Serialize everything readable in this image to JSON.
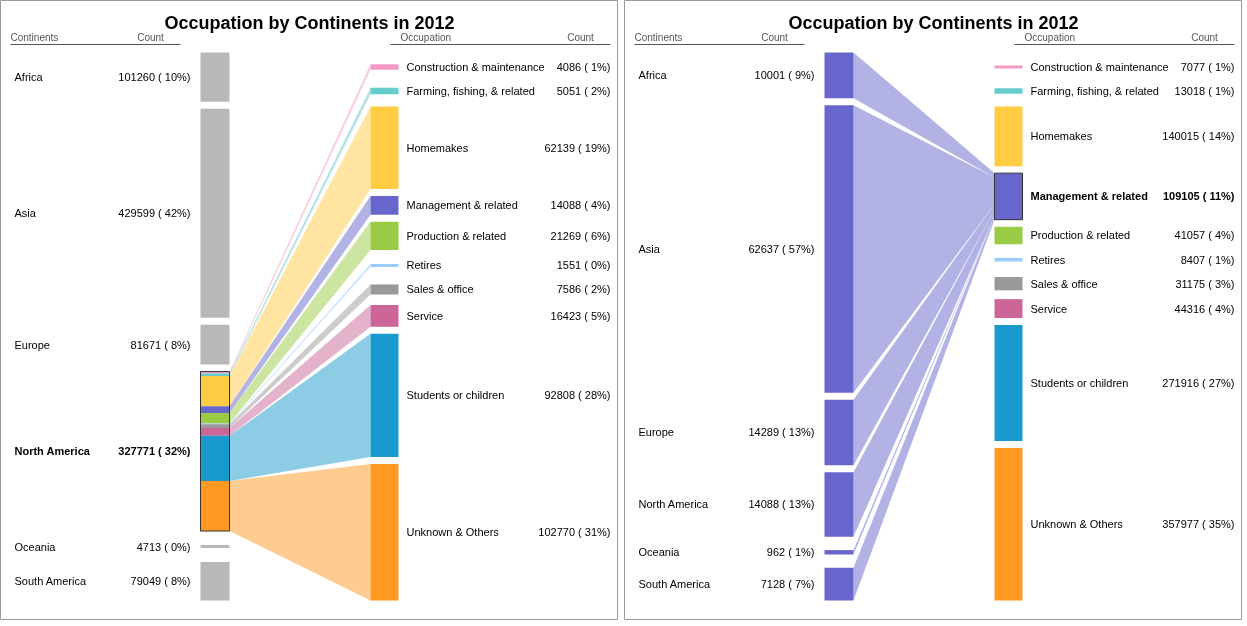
{
  "chart_data": [
    {
      "type": "other",
      "title": "Occupation by Continents in 2012",
      "xlabel": "Continents",
      "ylabel": "Count",
      "categories": [
        "Africa",
        "Asia",
        "Europe",
        "North America",
        "Oceania",
        "South America"
      ],
      "values": [
        101260,
        429599,
        81671,
        327771,
        4713,
        79049
      ],
      "value_labels": [
        "101260 ( 10%)",
        "429599 ( 42%)",
        "81671 ( 8%)",
        "327771 ( 32%)",
        "4713 ( 0%)",
        "79049 ( 8%)"
      ],
      "colors": [
        "#b8b8b8",
        "#b8b8b8",
        "#b8b8b8",
        "#b8b8b8",
        "#b8b8b8",
        "#b8b8b8"
      ]
    },
    {
      "type": "other",
      "xlabel": "Occupation",
      "ylabel": "Count",
      "categories": [
        "Construction & maintenance",
        "Farming, fishing, & related",
        "Homemakes",
        "Management & related",
        "Production & related",
        "Retires",
        "Sales & office",
        "Service",
        "Students or children",
        "Unknown & Others"
      ],
      "values": [
        4086,
        5051,
        62139,
        14088,
        21269,
        1551,
        7586,
        16423,
        92808,
        102770
      ],
      "value_labels": [
        "4086 ( 1%)",
        "5051 ( 2%)",
        "62139 ( 19%)",
        "14088 ( 4%)",
        "21269 ( 6%)",
        "1551 ( 0%)",
        "7586 ( 2%)",
        "16423 ( 5%)",
        "92808 ( 28%)",
        "102770 ( 31%)"
      ],
      "colors": [
        "#f59ac6",
        "#66cccc",
        "#ffcc44",
        "#6666cc",
        "#99cc44",
        "#99ccff",
        "#999999",
        "#cc6699",
        "#1a9acc",
        "#ff9922"
      ]
    },
    {
      "type": "other",
      "title": "Occupation by Continents in 2012",
      "xlabel": "Continents",
      "ylabel": "Count",
      "categories": [
        "Africa",
        "Asia",
        "Europe",
        "North America",
        "Oceania",
        "South America"
      ],
      "values": [
        10001,
        62637,
        14289,
        14088,
        962,
        7128
      ],
      "value_labels": [
        "10001 ( 9%)",
        "62637 ( 57%)",
        "14289 ( 13%)",
        "14088 ( 13%)",
        "962 ( 1%)",
        "7128 ( 7%)"
      ],
      "colors": [
        "#6666cc",
        "#6666cc",
        "#6666cc",
        "#6666cc",
        "#6666cc",
        "#6666cc"
      ]
    },
    {
      "type": "other",
      "xlabel": "Occupation",
      "ylabel": "Count",
      "categories": [
        "Construction & maintenance",
        "Farming, fishing, & related",
        "Homemakes",
        "Management & related",
        "Production & related",
        "Retires",
        "Sales & office",
        "Service",
        "Students or children",
        "Unknown & Others"
      ],
      "values": [
        7077,
        13018,
        140015,
        109105,
        41057,
        8407,
        31175,
        44316,
        271916,
        357977
      ],
      "value_labels": [
        "7077 ( 1%)",
        "13018 ( 1%)",
        "140015 ( 14%)",
        "109105 ( 11%)",
        "41057 ( 4%)",
        "8407 ( 1%)",
        "31175 ( 3%)",
        "44316 ( 4%)",
        "271916 ( 27%)",
        "357977 ( 35%)"
      ],
      "colors": [
        "#f59ac6",
        "#66cccc",
        "#ffcc44",
        "#6666cc",
        "#99cc44",
        "#99ccff",
        "#999999",
        "#cc6699",
        "#1a9acc",
        "#ff9922"
      ]
    }
  ]
}
